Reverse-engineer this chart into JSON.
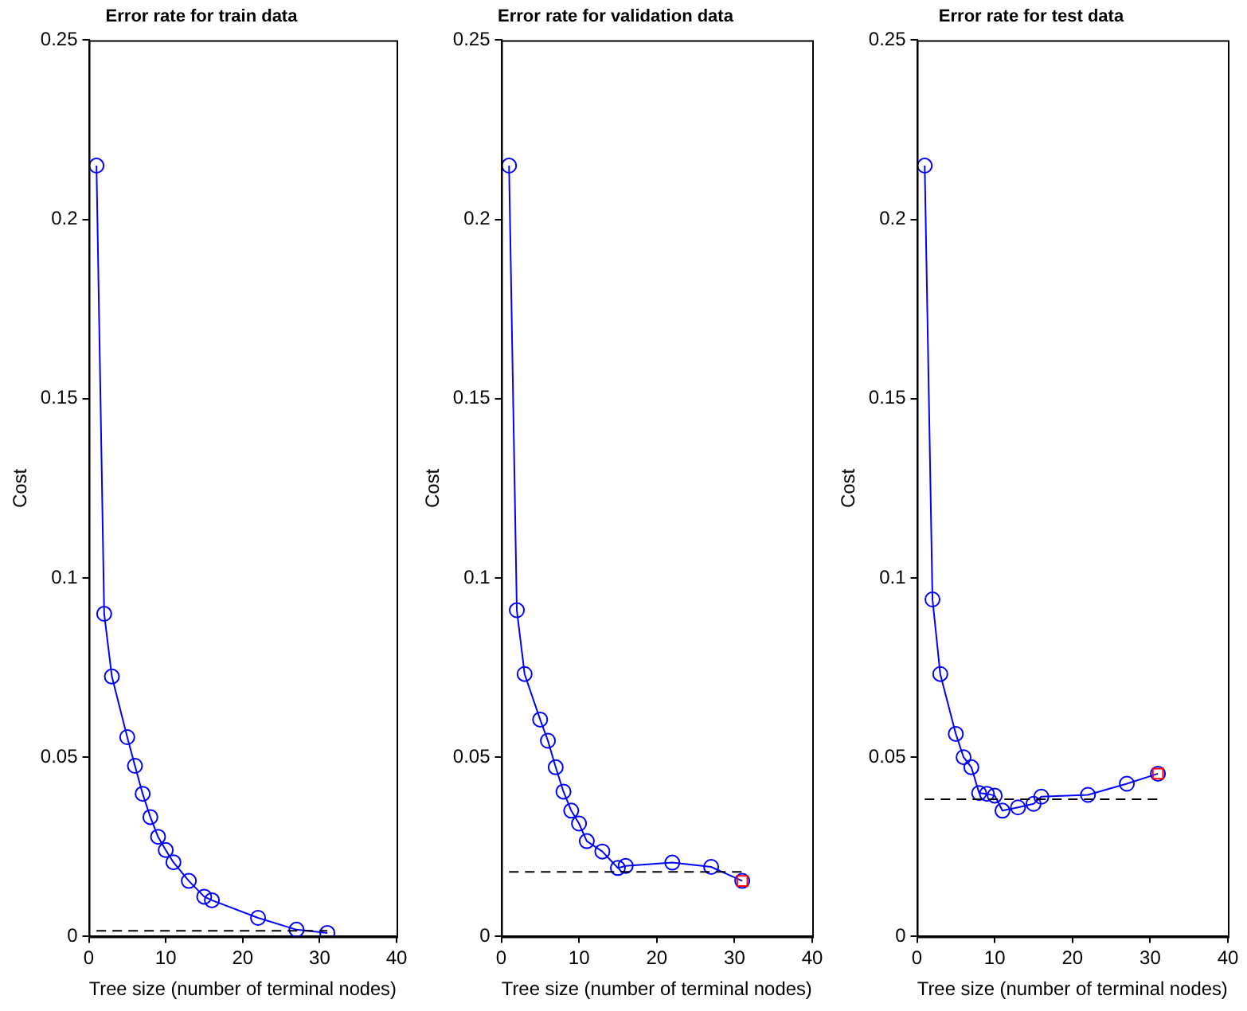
{
  "chart_data": [
    {
      "type": "line",
      "title": "Error rate for train data",
      "xlabel": "Tree size (number of terminal nodes)",
      "ylabel": "Cost",
      "xlim": [
        0,
        40
      ],
      "xticks": [
        0,
        10,
        20,
        30,
        40
      ],
      "ylim": [
        0,
        0.25
      ],
      "yticks": [
        0,
        0.05,
        0.1,
        0.15,
        0.2,
        0.25
      ],
      "grid": false,
      "legend": false,
      "series": [
        {
          "type": "line",
          "color": "#0000ff",
          "marker": "circle",
          "line_style": "solid",
          "x": [
            1,
            2,
            3,
            5,
            6,
            7,
            8,
            9,
            10,
            11,
            13,
            15,
            16,
            22,
            27,
            31
          ],
          "values": [
            0.215,
            0.09,
            0.0725,
            0.0556,
            0.0476,
            0.0398,
            0.0333,
            0.0278,
            0.0241,
            0.0207,
            0.0155,
            0.0111,
            0.0101,
            0.0052,
            0.0019,
            0.001
          ]
        },
        {
          "type": "line",
          "color": "#000000",
          "marker": "none",
          "line_style": "dashed",
          "x": [
            1,
            31
          ],
          "values": [
            0.0016,
            0.0016
          ]
        }
      ]
    },
    {
      "type": "line",
      "title": "Error rate for validation data",
      "xlabel": "Tree size (number of terminal nodes)",
      "ylabel": "Cost",
      "xlim": [
        0,
        40
      ],
      "xticks": [
        0,
        10,
        20,
        30,
        40
      ],
      "ylim": [
        0,
        0.25
      ],
      "yticks": [
        0,
        0.05,
        0.1,
        0.15,
        0.2,
        0.25
      ],
      "grid": false,
      "legend": false,
      "series": [
        {
          "type": "line",
          "color": "#0000ff",
          "marker": "circle",
          "line_style": "solid",
          "x": [
            1,
            2,
            3,
            5,
            6,
            7,
            8,
            9,
            10,
            11,
            13,
            15,
            16,
            22,
            27,
            31
          ],
          "values": [
            0.215,
            0.091,
            0.0732,
            0.0605,
            0.0546,
            0.0472,
            0.0404,
            0.0351,
            0.0315,
            0.0266,
            0.0237,
            0.0191,
            0.0197,
            0.0206,
            0.0194,
            0.0155
          ]
        },
        {
          "type": "line",
          "color": "#000000",
          "marker": "none",
          "line_style": "dashed",
          "x": [
            1,
            31
          ],
          "values": [
            0.018,
            0.018
          ]
        },
        {
          "type": "scatter",
          "color": "#ff0000",
          "marker": "square",
          "x": [
            31
          ],
          "values": [
            0.0155
          ]
        }
      ]
    },
    {
      "type": "line",
      "title": "Error rate for test data",
      "xlabel": "Tree size (number of terminal nodes)",
      "ylabel": "Cost",
      "xlim": [
        0,
        40
      ],
      "xticks": [
        0,
        10,
        20,
        30,
        40
      ],
      "ylim": [
        0,
        0.25
      ],
      "yticks": [
        0,
        0.05,
        0.1,
        0.15,
        0.2,
        0.25
      ],
      "grid": false,
      "legend": false,
      "series": [
        {
          "type": "line",
          "color": "#0000ff",
          "marker": "circle",
          "line_style": "solid",
          "x": [
            1,
            2,
            3,
            5,
            6,
            7,
            8,
            9,
            10,
            11,
            13,
            15,
            16,
            22,
            27,
            31
          ],
          "values": [
            0.215,
            0.094,
            0.0732,
            0.0565,
            0.05,
            0.0472,
            0.04,
            0.0398,
            0.0393,
            0.0351,
            0.036,
            0.037,
            0.039,
            0.0395,
            0.0426,
            0.0454
          ]
        },
        {
          "type": "line",
          "color": "#000000",
          "marker": "none",
          "line_style": "dashed",
          "x": [
            1,
            31
          ],
          "values": [
            0.0383,
            0.0383
          ]
        },
        {
          "type": "scatter",
          "color": "#ff0000",
          "marker": "square",
          "x": [
            31
          ],
          "values": [
            0.0454
          ]
        }
      ]
    }
  ]
}
